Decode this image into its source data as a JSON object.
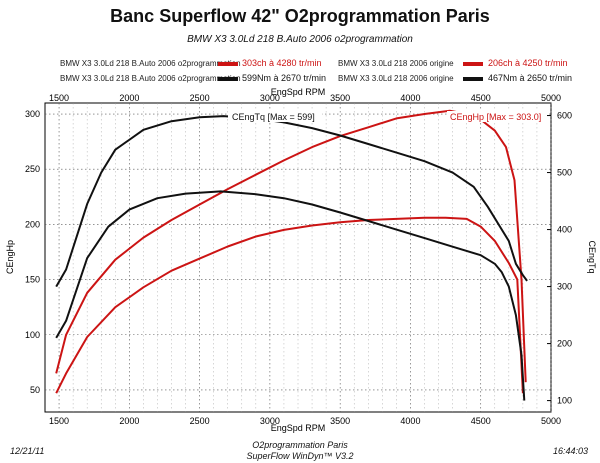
{
  "title": "Banc Superflow 42\" O2programmation Paris",
  "subtitle": "BMW X3 3.0Ld 218 B.Auto 2006 o2programmation",
  "legend": [
    {
      "name": "BMW X3 3.0Ld 218 B.Auto 2006 o2programmation",
      "color": "#cc1414",
      "value": "303ch à 4280 tr/min",
      "value_color": "red"
    },
    {
      "name": "BMW X3 3.0Ld 218 2006 origine",
      "color": "#cc1414",
      "value": "206ch à 4250 tr/min",
      "value_color": "red"
    },
    {
      "name": "BMW X3 3.0Ld 218 B.Auto 2006 o2programmation",
      "color": "#111111",
      "value": "599Nm à 2670 tr/min",
      "value_color": "black"
    },
    {
      "name": "BMW X3 3.0Ld 218 2006 origine",
      "color": "#111111",
      "value": "467Nm à 2650 tr/min",
      "value_color": "black"
    }
  ],
  "footer": {
    "date": "12/21/11",
    "time": "16:44:03",
    "name": "O2programmation Paris",
    "software": "SuperFlow WinDyn™ V3.2"
  },
  "chart_data": {
    "type": "line",
    "xlabel": "EngSpd RPM",
    "ylabel_left": "CEngHp",
    "ylabel_right": "CEngTq",
    "xlim": [
      1400,
      5000
    ],
    "ylim_left": [
      30,
      310
    ],
    "ylim_right": [
      80,
      622
    ],
    "x_ticks": [
      "1500",
      "2000",
      "2500",
      "3000",
      "3500",
      "4000",
      "4500",
      "5000"
    ],
    "y_left_ticks": [
      "50",
      "100",
      "150",
      "200",
      "250",
      "300"
    ],
    "y_right_ticks": [
      "100",
      "200",
      "300",
      "400",
      "500",
      "600"
    ],
    "grid": true,
    "annotations": [
      {
        "text": "CEngTq [Max = 599]",
        "color": "#111111"
      },
      {
        "text": "CEngHp [Max = 303.0]",
        "color": "#cc1414"
      }
    ],
    "series": [
      {
        "axis": "left",
        "color": "#cc1414",
        "x": [
          1480,
          1550,
          1700,
          1900,
          2100,
          2300,
          2500,
          2700,
          2900,
          3100,
          3300,
          3500,
          3700,
          3900,
          4100,
          4280,
          4400,
          4500,
          4600,
          4680,
          4740,
          4790,
          4820
        ],
        "y": [
          65,
          100,
          138,
          168,
          188,
          204,
          218,
          232,
          245,
          258,
          270,
          280,
          288,
          296,
          300,
          303,
          300,
          295,
          285,
          270,
          240,
          150,
          57
        ]
      },
      {
        "axis": "left",
        "color": "#cc1414",
        "x": [
          1480,
          1550,
          1700,
          1900,
          2100,
          2300,
          2500,
          2700,
          2900,
          3100,
          3300,
          3500,
          3700,
          3900,
          4100,
          4250,
          4400,
          4500,
          4600,
          4700,
          4760,
          4800
        ],
        "y": [
          47,
          65,
          98,
          125,
          143,
          158,
          169,
          180,
          189,
          195,
          199,
          202,
          204,
          205,
          206,
          206,
          205,
          198,
          185,
          165,
          150,
          47
        ]
      },
      {
        "axis": "right",
        "color": "#111111",
        "x": [
          1480,
          1550,
          1700,
          1800,
          1900,
          2100,
          2300,
          2500,
          2670,
          2900,
          3100,
          3300,
          3500,
          3700,
          3900,
          4100,
          4300,
          4450,
          4550,
          4650,
          4700,
          4750,
          4800,
          4830
        ],
        "y": [
          300,
          330,
          445,
          500,
          540,
          575,
          590,
          597,
          599,
          595,
          588,
          578,
          565,
          550,
          535,
          520,
          500,
          475,
          440,
          400,
          380,
          340,
          320,
          310
        ]
      },
      {
        "axis": "right",
        "color": "#111111",
        "x": [
          1480,
          1550,
          1700,
          1850,
          2000,
          2200,
          2400,
          2650,
          2900,
          3100,
          3300,
          3500,
          3700,
          3900,
          4100,
          4300,
          4500,
          4600,
          4650,
          4700,
          4750,
          4790,
          4810
        ],
        "y": [
          210,
          240,
          350,
          405,
          435,
          455,
          463,
          467,
          462,
          455,
          444,
          430,
          415,
          400,
          385,
          370,
          355,
          340,
          325,
          300,
          250,
          180,
          100
        ]
      }
    ]
  }
}
